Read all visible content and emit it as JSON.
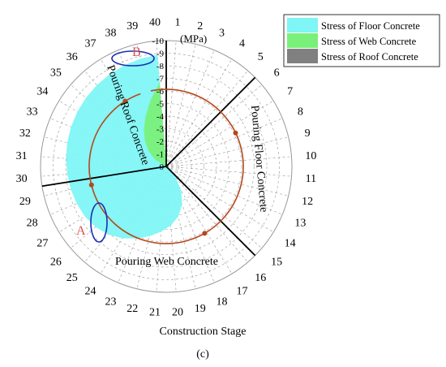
{
  "chart_data": {
    "type": "polar-area",
    "stages": [
      "1",
      "2",
      "3",
      "4",
      "5",
      "6",
      "7",
      "8",
      "9",
      "10",
      "11",
      "12",
      "13",
      "14",
      "15",
      "16",
      "17",
      "18",
      "19",
      "20",
      "21",
      "22",
      "23",
      "24",
      "25",
      "26",
      "27",
      "28",
      "29",
      "30",
      "31",
      "32",
      "33",
      "34",
      "35",
      "36",
      "37",
      "38",
      "39",
      "40"
    ],
    "radial_ticks": [
      "-10",
      "-9",
      "-8",
      "-7",
      "-6",
      "-5",
      "-4",
      "-3",
      "-2",
      "-1",
      "0"
    ],
    "radial_unit": "(MPa)",
    "rlim": [
      0,
      -10
    ],
    "xlabel": "Construction Stage",
    "panel_label": "(c)",
    "legend": [
      {
        "name": "Stress of Floor Concrete",
        "color": "#7ff5f5"
      },
      {
        "name": "Stress of Web Concrete",
        "color": "#7af07a"
      },
      {
        "name": "Stress of Roof Concrete",
        "color": "#808080"
      }
    ],
    "series": [
      {
        "name": "Stress of Floor Concrete",
        "values": [
          0,
          0,
          0,
          0,
          0,
          0,
          0,
          0,
          0,
          0,
          0,
          0,
          0,
          0,
          -0.3,
          -1.2,
          -2.3,
          -3.3,
          -4.1,
          -4.7,
          -5.2,
          -5.7,
          -6.2,
          -6.7,
          -7.1,
          -7.4,
          -7.6,
          -7.7,
          -7.8,
          -7.9,
          -8.0,
          -8.1,
          -8.2,
          -8.3,
          -8.4,
          -8.5,
          -8.6,
          -8.7,
          -8.8,
          -8.9
        ]
      },
      {
        "name": "Stress of Web Concrete",
        "values": [
          0,
          0,
          0,
          0,
          0,
          0,
          0,
          0,
          0,
          0,
          0,
          0,
          0,
          0,
          0,
          0,
          0,
          0,
          0,
          0,
          0,
          0,
          0,
          0,
          0,
          0,
          0,
          0,
          0,
          0,
          0,
          0,
          0,
          -1.0,
          -1.8,
          -2.6,
          -3.4,
          -4.3,
          -5.4,
          -6.7
        ]
      },
      {
        "name": "Stress of Roof Concrete",
        "values": [
          0,
          0,
          0,
          0,
          0,
          0,
          0,
          0,
          0,
          0,
          0,
          0,
          0,
          0,
          0,
          0,
          0,
          0,
          0,
          0,
          0,
          0,
          0,
          0,
          0,
          0,
          0,
          0,
          0,
          0,
          0,
          0,
          0,
          0,
          0,
          0,
          0,
          0,
          0,
          0
        ]
      }
    ],
    "annotations": [
      {
        "text": "Pouring Roof Concrete"
      },
      {
        "text": "Pouring Floor Concrete"
      },
      {
        "text": "Pouring Web Concrete"
      },
      {
        "text": "A",
        "color": "#d9534f"
      },
      {
        "text": "B",
        "color": "#d9534f"
      }
    ],
    "stage_boundaries": [
      5.5,
      15.5,
      29.5,
      40.5
    ],
    "grid": true
  }
}
